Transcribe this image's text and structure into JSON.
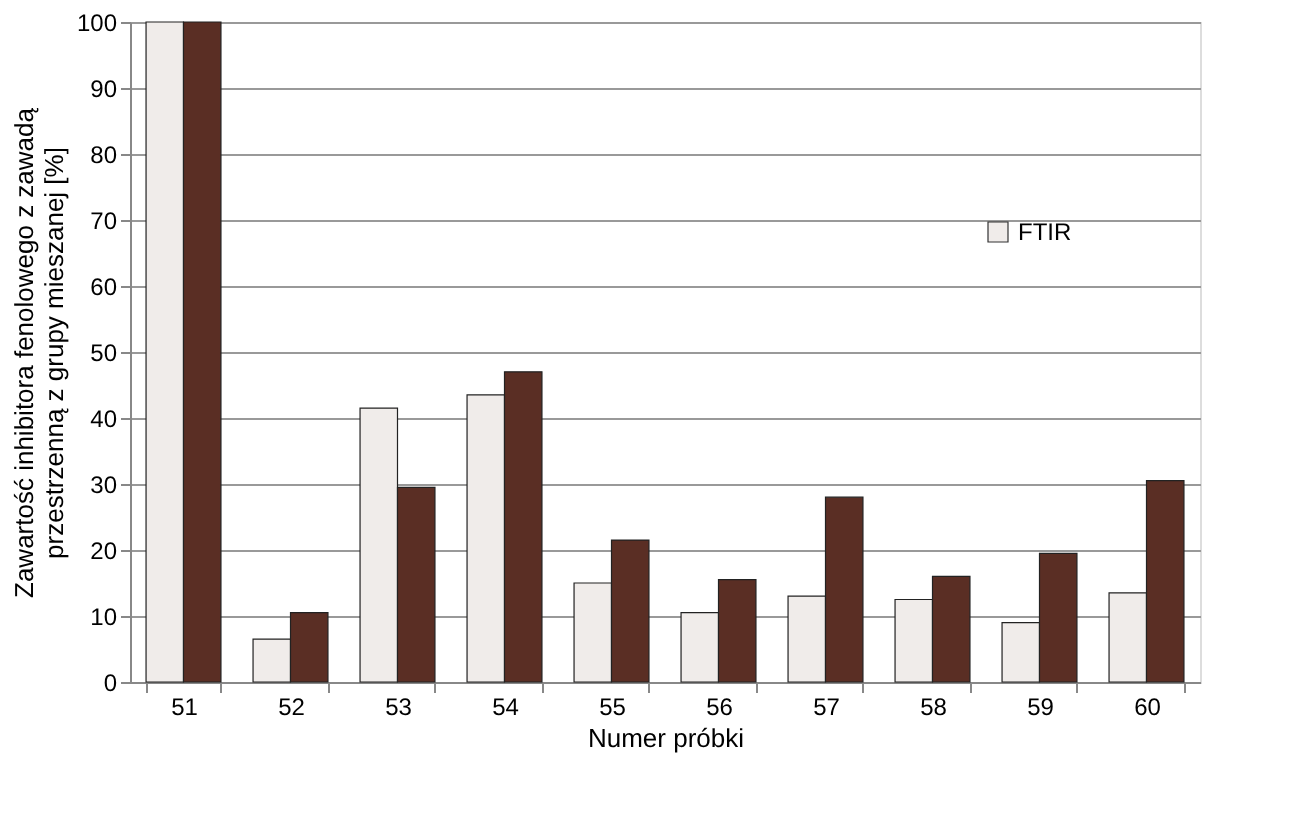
{
  "chart_data": {
    "type": "bar",
    "xlabel": "Numer próbki",
    "ylabel": "Zawartość inhibitora fenolowego z zawadą\nprzestrzenną z grupy mieszanej [%]",
    "categories": [
      "51",
      "52",
      "53",
      "54",
      "55",
      "56",
      "57",
      "58",
      "59",
      "60"
    ],
    "series": [
      {
        "name": "FTIR",
        "color": "#f0ecea",
        "values": [
          100,
          6.5,
          41.5,
          43.5,
          15,
          10.5,
          13,
          12.5,
          9,
          13.5
        ]
      },
      {
        "color": "#5a2e24",
        "values": [
          100,
          10.5,
          29.5,
          47,
          21.5,
          15.5,
          28,
          16,
          19.5,
          30.5
        ]
      }
    ],
    "ylim": [
      0,
      100
    ],
    "yticks": [
      0,
      10,
      20,
      30,
      40,
      50,
      60,
      70,
      80,
      90,
      100
    ],
    "grid": "y",
    "legend": "right"
  }
}
